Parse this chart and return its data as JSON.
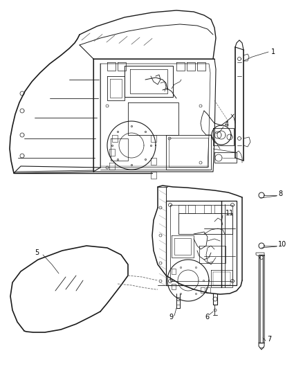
{
  "bg_color": "#ffffff",
  "line_color": "#1a1a1a",
  "label_color": "#000000",
  "fig_width": 4.38,
  "fig_height": 5.33,
  "dpi": 100
}
